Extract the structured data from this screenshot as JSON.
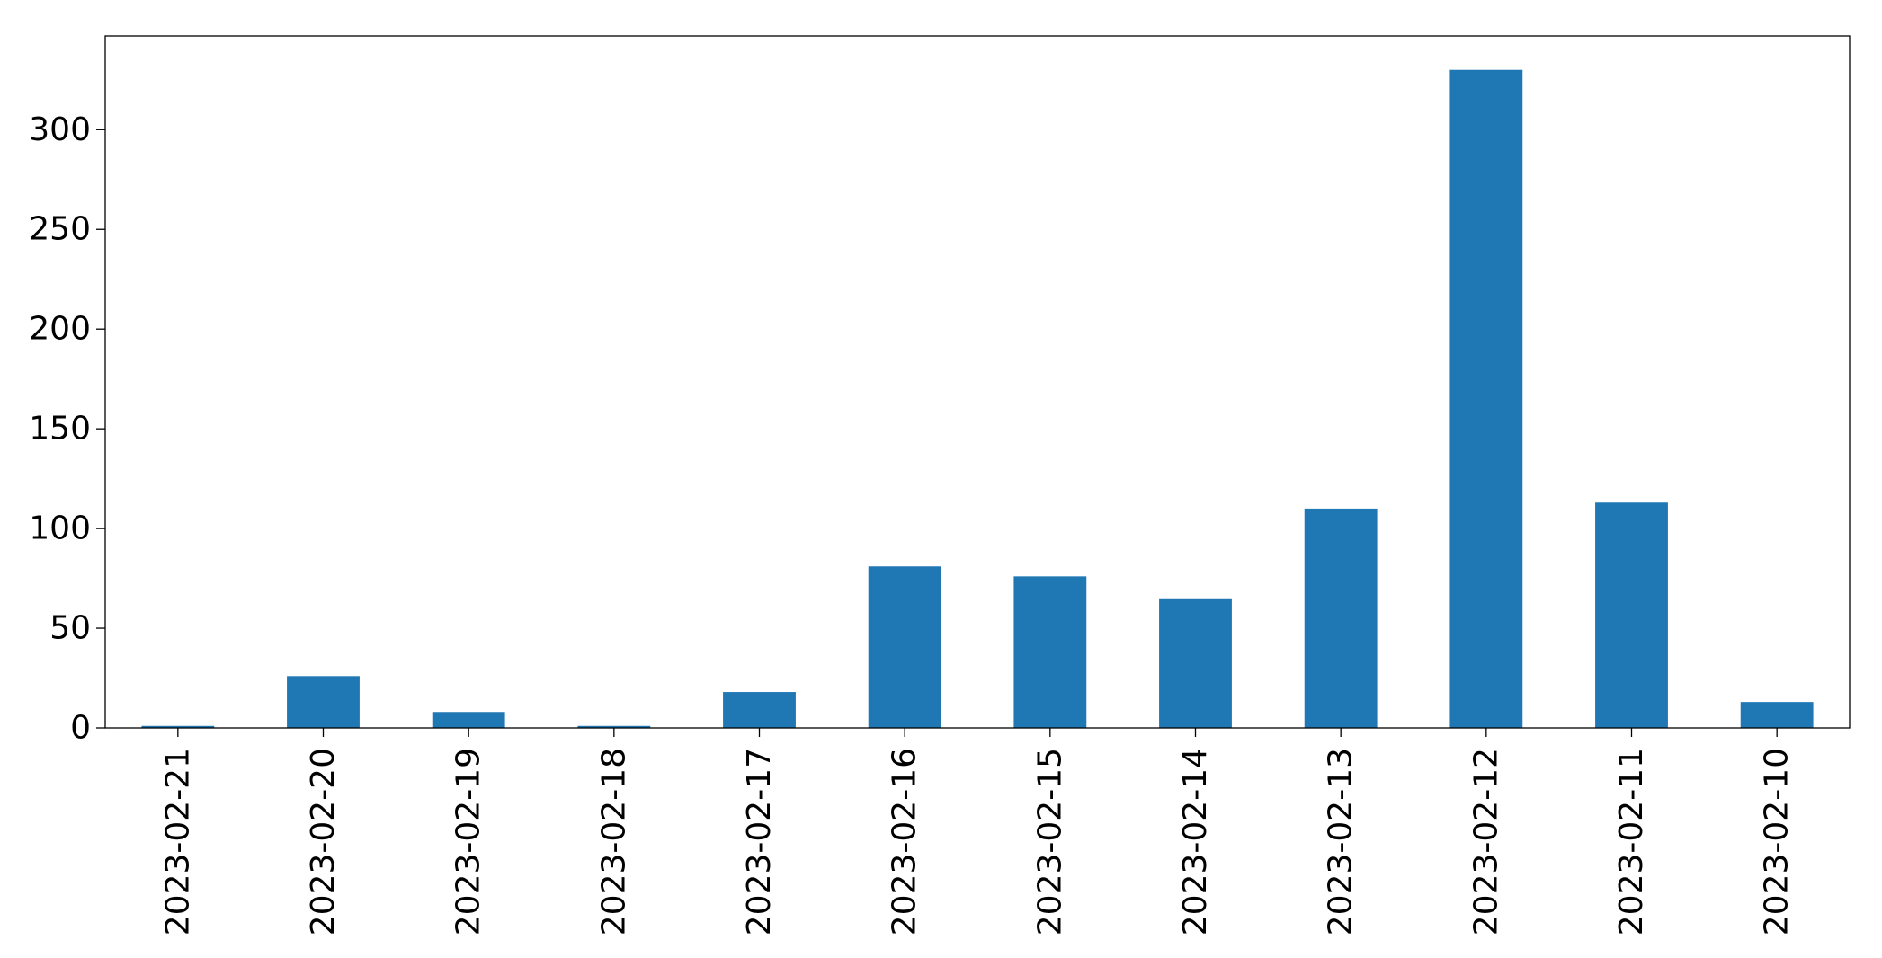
{
  "chart_data": {
    "type": "bar",
    "title": "",
    "xlabel": "",
    "ylabel": "",
    "categories": [
      "2023-02-21",
      "2023-02-20",
      "2023-02-19",
      "2023-02-18",
      "2023-02-17",
      "2023-02-16",
      "2023-02-15",
      "2023-02-14",
      "2023-02-13",
      "2023-02-12",
      "2023-02-11",
      "2023-02-10"
    ],
    "values": [
      1,
      26,
      8,
      1,
      18,
      81,
      76,
      65,
      110,
      330,
      113,
      13
    ],
    "ylim": [
      0,
      347
    ],
    "yticks": [
      0,
      50,
      100,
      150,
      200,
      250,
      300
    ],
    "ytick_labels": [
      "0",
      "50",
      "100",
      "150",
      "200",
      "250",
      "300"
    ],
    "bar_color": "#1f77b4",
    "grid": false,
    "legend": "none"
  }
}
